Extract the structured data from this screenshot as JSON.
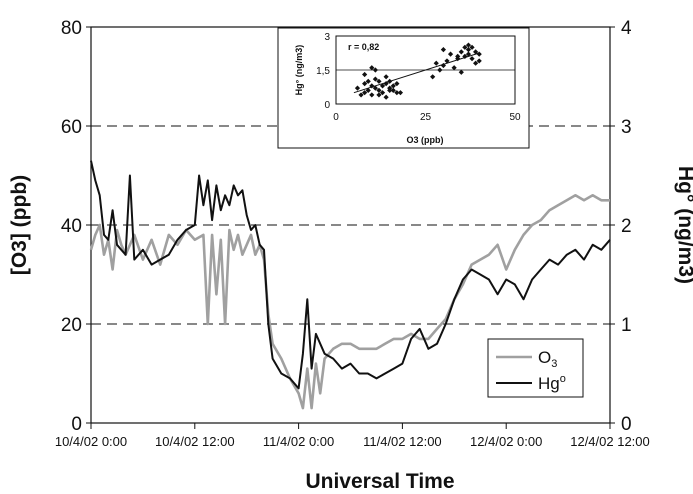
{
  "chart_data": [
    {
      "type": "line",
      "title": "",
      "xlabel": "Universal Time",
      "ylabel_left": "[O3] (ppb)",
      "ylabel_right": "Hg° (ng/m3)",
      "x_ticks": [
        "10/4/02 0:00",
        "10/4/02 12:00",
        "11/4/02 0:00",
        "11/4/02 12:00",
        "12/4/02 0:00",
        "12/4/02 12:00"
      ],
      "x_range_hours": [
        0,
        60
      ],
      "ylim_left": [
        0,
        80
      ],
      "ylim_right": [
        0,
        4
      ],
      "yticks_left": [
        "0",
        "20",
        "40",
        "60",
        "80"
      ],
      "yticks_right": [
        "0",
        "1",
        "2",
        "3",
        "4"
      ],
      "grid": "dashed horizontal",
      "legend_position": "bottom-right",
      "legend": {
        "o3_base": "O",
        "o3_sub": "3",
        "hg_base": "Hg",
        "hg_sup": "o"
      },
      "series": [
        {
          "name": "O3",
          "axis": "left",
          "color": "#999999",
          "x": [
            0,
            0.5,
            1,
            1.5,
            2,
            2.5,
            3,
            3.5,
            4,
            5,
            6,
            7,
            8,
            9,
            10,
            11,
            12,
            13,
            13.5,
            14,
            14.5,
            15,
            15.5,
            16,
            16.5,
            17,
            17.5,
            18,
            18.5,
            19,
            19.5,
            20,
            20.5,
            21,
            22,
            23,
            24,
            24.5,
            25,
            25.5,
            26,
            26.5,
            27,
            28,
            29,
            30,
            31,
            32,
            33,
            34,
            35,
            36,
            37,
            38,
            39,
            40,
            41,
            42,
            43,
            44,
            45,
            46,
            47,
            48,
            49,
            50,
            51,
            52,
            53,
            54,
            55,
            56,
            57,
            58,
            59,
            60
          ],
          "values": [
            35,
            38,
            40,
            34,
            37,
            31,
            39,
            36,
            34,
            38,
            33,
            37,
            32,
            38,
            36,
            39,
            37,
            38,
            20,
            38,
            26,
            37,
            20,
            39,
            35,
            38,
            34,
            36,
            38,
            34,
            36,
            33,
            22,
            16,
            13,
            9,
            6,
            3,
            11,
            3,
            12,
            6,
            13,
            15,
            16,
            16,
            15,
            15,
            15,
            16,
            17,
            17,
            18,
            17,
            17,
            19,
            21,
            25,
            28,
            32,
            33,
            34,
            36,
            31,
            35,
            38,
            40,
            41,
            43,
            44,
            45,
            46,
            45,
            46,
            45,
            45
          ]
        },
        {
          "name": "Hg°",
          "axis": "right",
          "color": "#111111",
          "x": [
            0,
            0.5,
            1,
            1.5,
            2,
            2.5,
            3,
            3.5,
            4,
            4.5,
            5,
            6,
            7,
            8,
            9,
            10,
            11,
            12,
            12.5,
            13,
            13.5,
            14,
            14.5,
            15,
            15.5,
            16,
            16.5,
            17,
            17.5,
            18,
            18.5,
            19,
            19.5,
            20,
            20.5,
            21,
            22,
            23,
            24,
            24.5,
            25,
            25.5,
            26,
            27,
            28,
            29,
            30,
            31,
            32,
            33,
            34,
            35,
            36,
            37,
            38,
            39,
            40,
            41,
            42,
            43,
            44,
            45,
            46,
            47,
            48,
            49,
            50,
            51,
            52,
            53,
            54,
            55,
            56,
            57,
            58,
            59,
            60
          ],
          "values": [
            2.65,
            2.45,
            2.3,
            1.9,
            1.85,
            2.15,
            1.8,
            1.75,
            1.7,
            2.5,
            1.65,
            1.75,
            1.6,
            1.65,
            1.7,
            1.85,
            1.95,
            2.0,
            2.5,
            2.2,
            2.45,
            2.05,
            2.4,
            2.15,
            2.3,
            2.2,
            2.4,
            2.3,
            2.35,
            2.1,
            1.95,
            2.0,
            1.8,
            1.75,
            1.0,
            0.65,
            0.5,
            0.45,
            0.35,
            0.7,
            1.25,
            0.55,
            0.9,
            0.7,
            0.65,
            0.55,
            0.6,
            0.5,
            0.5,
            0.45,
            0.5,
            0.55,
            0.6,
            0.85,
            0.95,
            0.75,
            0.8,
            1.0,
            1.25,
            1.45,
            1.55,
            1.5,
            1.45,
            1.3,
            1.45,
            1.4,
            1.25,
            1.45,
            1.55,
            1.65,
            1.6,
            1.7,
            1.75,
            1.65,
            1.8,
            1.75,
            1.85
          ]
        }
      ]
    },
    {
      "type": "scatter",
      "title": "",
      "xlabel": "O3 (ppb)",
      "ylabel": "Hg° (ng/m3)",
      "annotation": "r = 0,82",
      "xlim": [
        0,
        50
      ],
      "ylim": [
        0,
        3
      ],
      "x_ticks": [
        "0",
        "25",
        "50"
      ],
      "y_ticks": [
        "0",
        "1,5",
        "3"
      ],
      "trendline": {
        "x": [
          5,
          40
        ],
        "y": [
          0.5,
          2.25
        ]
      },
      "points": {
        "x": [
          6,
          7,
          8,
          8,
          9,
          10,
          10,
          11,
          11,
          12,
          12,
          13,
          13,
          14,
          14,
          15,
          15,
          16,
          16,
          17,
          17,
          18,
          8,
          9,
          11,
          12,
          14,
          15,
          10,
          27,
          28,
          29,
          30,
          31,
          32,
          33,
          34,
          35,
          36,
          36,
          37,
          37,
          38,
          38,
          39,
          39,
          40,
          40,
          35,
          37,
          30,
          34
        ],
        "y": [
          0.7,
          0.4,
          0.5,
          0.9,
          0.6,
          0.4,
          0.8,
          0.7,
          1.1,
          0.6,
          1.0,
          0.8,
          0.5,
          0.9,
          1.2,
          0.7,
          1.0,
          0.6,
          0.8,
          0.5,
          0.9,
          0.5,
          1.3,
          1.0,
          1.5,
          0.4,
          0.3,
          0.6,
          1.6,
          1.2,
          1.8,
          1.5,
          2.4,
          1.9,
          2.2,
          1.6,
          2.0,
          2.3,
          2.5,
          2.1,
          2.4,
          2.2,
          2.5,
          2.0,
          2.3,
          1.8,
          2.2,
          1.9,
          1.4,
          2.6,
          1.7,
          2.1
        ]
      }
    }
  ]
}
